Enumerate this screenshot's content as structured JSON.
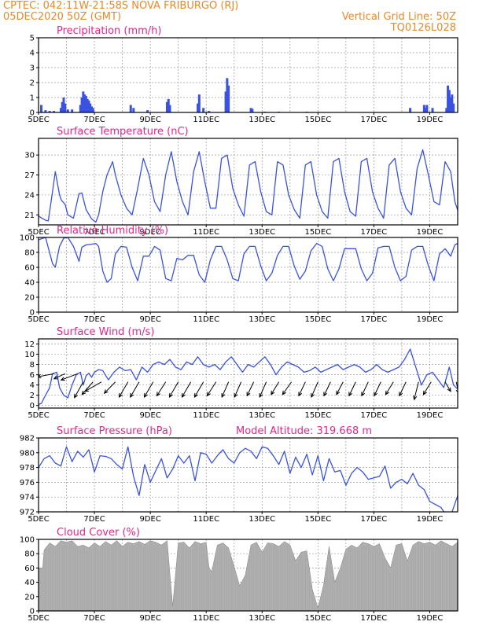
{
  "header": {
    "line1_left": "CPTEC:   042:11W-21:58S   NOVA FRIBURGO (RJ)",
    "line2_left": "05DEC2020 50Z (GMT)",
    "line2_right": "Vertical Grid Line: 50Z",
    "line3_right": "TQ0126L028"
  },
  "colors": {
    "series": "#3a52e0",
    "cloud": "#b0b0b0",
    "title": "#e0288c",
    "header": "#e8892a",
    "grid": "#9a9a9a"
  },
  "x_ticks": [
    "5DEC",
    "7DEC",
    "9DEC",
    "11DEC",
    "13DEC",
    "15DEC",
    "17DEC",
    "19DEC"
  ],
  "chart_data": [
    {
      "type": "bar",
      "title": "Precipitation (mm/h)",
      "ylim": [
        0,
        5
      ],
      "yticks": [
        "0",
        "1",
        "2",
        "3",
        "4",
        "5"
      ],
      "x_unit": "days since 05DEC",
      "bars": [
        [
          0.1,
          0.5
        ],
        [
          0.25,
          0.15
        ],
        [
          0.4,
          0.1
        ],
        [
          0.55,
          0.1
        ],
        [
          0.8,
          0.3
        ],
        [
          0.85,
          0.7
        ],
        [
          0.9,
          1.0
        ],
        [
          0.95,
          0.6
        ],
        [
          1.05,
          0.2
        ],
        [
          1.2,
          0.2
        ],
        [
          1.5,
          0.5
        ],
        [
          1.55,
          1.0
        ],
        [
          1.6,
          1.4
        ],
        [
          1.65,
          1.2
        ],
        [
          1.7,
          1.1
        ],
        [
          1.75,
          0.9
        ],
        [
          1.8,
          0.8
        ],
        [
          1.85,
          0.6
        ],
        [
          1.9,
          0.4
        ],
        [
          1.95,
          0.3
        ],
        [
          3.3,
          0.5
        ],
        [
          3.4,
          0.3
        ],
        [
          3.9,
          0.15
        ],
        [
          4.6,
          0.7
        ],
        [
          4.65,
          0.9
        ],
        [
          4.7,
          0.5
        ],
        [
          5.7,
          0.6
        ],
        [
          5.75,
          1.2
        ],
        [
          5.9,
          0.3
        ],
        [
          6.1,
          0.1
        ],
        [
          6.7,
          1.4
        ],
        [
          6.75,
          2.3
        ],
        [
          6.8,
          1.8
        ],
        [
          7.6,
          0.3
        ],
        [
          7.65,
          0.25
        ],
        [
          8.1,
          0.05
        ],
        [
          8.6,
          0.05
        ],
        [
          9.6,
          0.05
        ],
        [
          13.3,
          0.3
        ],
        [
          13.8,
          0.5
        ],
        [
          13.85,
          0.3
        ],
        [
          13.9,
          0.5
        ],
        [
          14.1,
          0.3
        ],
        [
          14.6,
          0.3
        ],
        [
          14.65,
          1.8
        ],
        [
          14.7,
          1.5
        ],
        [
          14.75,
          1.0
        ],
        [
          14.8,
          1.2
        ],
        [
          14.85,
          0.6
        ]
      ]
    },
    {
      "type": "line",
      "title": "Surface Temperature (nC)",
      "ylim": [
        19.5,
        32.5
      ],
      "yticks": [
        "21",
        "24",
        "27",
        "30"
      ],
      "x": [
        0,
        0.25,
        0.35,
        0.5,
        0.6,
        0.75,
        0.82,
        0.95,
        1.05,
        1.25,
        1.45,
        1.55,
        1.7,
        1.9,
        2.05,
        2.15,
        2.3,
        2.45,
        2.65,
        2.75,
        2.95,
        3.15,
        3.35,
        3.55,
        3.75,
        3.95,
        4.15,
        4.35,
        4.55,
        4.75,
        4.95,
        5.15,
        5.35,
        5.55,
        5.75,
        5.95,
        6.15,
        6.35,
        6.55,
        6.75,
        6.95,
        7.15,
        7.35,
        7.55,
        7.75,
        7.95,
        8.15,
        8.35,
        8.55,
        8.75,
        8.95,
        9.15,
        9.35,
        9.55,
        9.75,
        9.95,
        10.15,
        10.35,
        10.55,
        10.75,
        10.95,
        11.15,
        11.35,
        11.55,
        11.75,
        11.95,
        12.15,
        12.35,
        12.55,
        12.75,
        12.95,
        13.15,
        13.35,
        13.55,
        13.75,
        13.95,
        14.15,
        14.35,
        14.55,
        14.75,
        14.9,
        15
      ],
      "y": [
        20.8,
        20.2,
        20.1,
        24.5,
        27.5,
        24.0,
        23.2,
        22.6,
        21.0,
        20.5,
        24.2,
        24.3,
        21.8,
        20.4,
        19.9,
        21.0,
        24.5,
        27.0,
        29.0,
        27.0,
        24.0,
        22.0,
        21.0,
        25.0,
        29.5,
        27.0,
        23.0,
        21.5,
        27.0,
        30.5,
        26.0,
        23.0,
        21.0,
        27.5,
        30.5,
        26.0,
        22.0,
        22.0,
        29.5,
        30.0,
        25.0,
        22.5,
        20.8,
        28.5,
        29.0,
        24.5,
        21.5,
        21.0,
        29.0,
        28.5,
        24.0,
        21.8,
        20.5,
        28.5,
        29.0,
        24.0,
        21.5,
        20.5,
        29.0,
        29.5,
        24.5,
        21.5,
        20.8,
        29.0,
        29.5,
        24.5,
        22.0,
        20.5,
        28.5,
        29.5,
        24.5,
        22.0,
        21.0,
        28.0,
        30.8,
        27.0,
        23.0,
        22.5,
        29.0,
        27.5,
        23.0,
        21.7
      ]
    },
    {
      "type": "line",
      "title": "Relative Humidity (%)",
      "ylim": [
        0,
        100
      ],
      "yticks": [
        "0",
        "20",
        "40",
        "60",
        "80",
        "100"
      ],
      "x": [
        0,
        0.25,
        0.5,
        0.6,
        0.75,
        0.9,
        1.05,
        1.25,
        1.45,
        1.55,
        1.7,
        1.9,
        2.05,
        2.15,
        2.3,
        2.45,
        2.6,
        2.75,
        2.95,
        3.15,
        3.35,
        3.55,
        3.75,
        3.95,
        4.15,
        4.35,
        4.55,
        4.75,
        4.95,
        5.15,
        5.35,
        5.55,
        5.75,
        5.95,
        6.15,
        6.35,
        6.55,
        6.75,
        6.95,
        7.15,
        7.35,
        7.55,
        7.75,
        7.95,
        8.15,
        8.35,
        8.55,
        8.75,
        8.95,
        9.15,
        9.35,
        9.55,
        9.75,
        9.95,
        10.15,
        10.35,
        10.55,
        10.75,
        10.95,
        11.15,
        11.35,
        11.55,
        11.75,
        11.95,
        12.15,
        12.35,
        12.55,
        12.75,
        12.95,
        13.15,
        13.35,
        13.55,
        13.75,
        13.95,
        14.15,
        14.35,
        14.55,
        14.75,
        14.9,
        15
      ],
      "y": [
        97,
        100,
        65,
        60,
        88,
        99,
        100,
        88,
        68,
        87,
        90,
        91,
        92,
        88,
        55,
        40,
        45,
        78,
        88,
        87,
        60,
        42,
        75,
        75,
        88,
        83,
        45,
        42,
        72,
        70,
        76,
        76,
        50,
        40,
        70,
        88,
        88,
        70,
        45,
        42,
        78,
        88,
        88,
        62,
        42,
        52,
        76,
        88,
        88,
        62,
        44,
        55,
        82,
        92,
        88,
        58,
        42,
        58,
        85,
        85,
        85,
        58,
        42,
        52,
        86,
        88,
        88,
        60,
        42,
        48,
        83,
        88,
        88,
        62,
        42,
        78,
        85,
        75,
        90,
        92
      ]
    },
    {
      "type": "line",
      "title": "Surface Wind (m/s)",
      "ylim": [
        -0.5,
        13
      ],
      "yticks": [
        "0",
        "2",
        "4",
        "6",
        "8",
        "10",
        "12"
      ],
      "x": [
        0,
        0.1,
        0.2,
        0.3,
        0.4,
        0.5,
        0.65,
        0.75,
        0.9,
        1.05,
        1.2,
        1.35,
        1.5,
        1.6,
        1.7,
        1.8,
        1.9,
        2.0,
        2.15,
        2.3,
        2.5,
        2.7,
        2.9,
        3.1,
        3.3,
        3.5,
        3.7,
        3.9,
        4.1,
        4.3,
        4.5,
        4.7,
        4.9,
        5.1,
        5.3,
        5.5,
        5.7,
        5.9,
        6.1,
        6.3,
        6.5,
        6.7,
        6.9,
        7.1,
        7.3,
        7.5,
        7.7,
        7.9,
        8.1,
        8.3,
        8.5,
        8.7,
        8.9,
        9.1,
        9.3,
        9.5,
        9.7,
        9.9,
        10.1,
        10.3,
        10.5,
        10.7,
        10.9,
        11.1,
        11.3,
        11.5,
        11.7,
        11.9,
        12.1,
        12.3,
        12.5,
        12.7,
        12.9,
        13.1,
        13.3,
        13.5,
        13.7,
        13.9,
        14.1,
        14.3,
        14.5,
        14.7,
        14.85,
        15
      ],
      "y": [
        0.2,
        0.4,
        1.5,
        2.5,
        3.5,
        6.2,
        6.5,
        3.5,
        2.0,
        1.5,
        4.0,
        6.0,
        6.5,
        4.0,
        5.8,
        6.3,
        5.5,
        6.5,
        7.0,
        6.8,
        5.0,
        6.5,
        7.5,
        6.8,
        7.0,
        5.0,
        7.5,
        6.5,
        8.0,
        8.5,
        8.0,
        9.0,
        7.5,
        7.0,
        8.5,
        8.0,
        9.5,
        8.0,
        7.5,
        8.0,
        7.0,
        8.5,
        9.5,
        8.0,
        6.5,
        8.0,
        7.5,
        8.5,
        9.5,
        8.0,
        6.0,
        7.5,
        8.5,
        8.0,
        7.5,
        6.5,
        6.8,
        7.5,
        6.5,
        7.0,
        7.5,
        8.0,
        7.0,
        7.5,
        8.0,
        7.5,
        6.5,
        7.0,
        8.0,
        7.0,
        6.5,
        7.0,
        7.5,
        9.0,
        11.0,
        7.5,
        4.0,
        6.0,
        6.5,
        5.0,
        3.5,
        7.5,
        4.0,
        3.2
      ],
      "vectors": [
        [
          0.55,
          0,
          -1.5,
          0.5
        ],
        [
          0.95,
          0,
          -1.0,
          0.8
        ],
        [
          1.4,
          0,
          -1.5,
          1.0
        ],
        [
          1.6,
          -3,
          -0.8,
          2.5
        ],
        [
          1.95,
          -3,
          -1.0,
          2.0
        ],
        [
          2.25,
          -3,
          -1.5,
          1.5
        ],
        [
          2.75,
          -3,
          -1.0,
          1.8
        ],
        [
          3.2,
          -3,
          -0.8,
          2.4
        ],
        [
          3.6,
          -3,
          -0.8,
          2.4
        ],
        [
          4.1,
          -3,
          -0.8,
          2.4
        ],
        [
          4.55,
          -3,
          -0.8,
          2.2
        ],
        [
          5.0,
          -3,
          -0.8,
          2.4
        ],
        [
          5.45,
          -3,
          -0.8,
          2.4
        ],
        [
          5.9,
          -3,
          -0.8,
          2.4
        ],
        [
          6.35,
          -3,
          -0.8,
          2.2
        ],
        [
          6.8,
          -3,
          -0.6,
          2.4
        ],
        [
          7.25,
          -3,
          -0.6,
          2.4
        ],
        [
          7.7,
          -3,
          -0.6,
          2.2
        ],
        [
          8.15,
          -3,
          -0.6,
          2.4
        ],
        [
          8.6,
          -3,
          -0.7,
          2.0
        ],
        [
          9.05,
          -3,
          -0.8,
          2.0
        ],
        [
          9.55,
          -3,
          -0.6,
          2.2
        ],
        [
          10.0,
          -3,
          -0.6,
          2.4
        ],
        [
          10.45,
          -3,
          -0.6,
          2.2
        ],
        [
          10.9,
          -3,
          -0.6,
          2.0
        ],
        [
          11.35,
          -3,
          -0.6,
          2.2
        ],
        [
          11.8,
          -3,
          -0.6,
          2.2
        ],
        [
          12.25,
          -3,
          -0.6,
          2.2
        ],
        [
          12.7,
          -3,
          -0.7,
          2.0
        ],
        [
          13.15,
          -3,
          -0.6,
          2.2
        ],
        [
          13.6,
          -3,
          -0.4,
          2.8
        ],
        [
          14.05,
          -3,
          -0.7,
          2.0
        ],
        [
          14.55,
          -3,
          0.5,
          1.5
        ],
        [
          14.95,
          -3,
          0.2,
          1.8
        ]
      ]
    },
    {
      "type": "line",
      "title": "Surface Pressure (hPa)",
      "annotation": "Model Altitude: 319.668 m",
      "ylim": [
        972,
        982
      ],
      "yticks": [
        "972",
        "974",
        "976",
        "978",
        "980",
        "982"
      ],
      "x": [
        0,
        0.2,
        0.4,
        0.6,
        0.8,
        1.0,
        1.2,
        1.4,
        1.6,
        1.8,
        2.0,
        2.2,
        2.4,
        2.6,
        2.8,
        3.0,
        3.2,
        3.4,
        3.6,
        3.8,
        4.0,
        4.2,
        4.4,
        4.6,
        4.8,
        5.0,
        5.2,
        5.4,
        5.6,
        5.8,
        6.0,
        6.2,
        6.4,
        6.6,
        6.8,
        7.0,
        7.2,
        7.4,
        7.6,
        7.8,
        8.0,
        8.2,
        8.4,
        8.6,
        8.8,
        9.0,
        9.2,
        9.4,
        9.6,
        9.8,
        10.0,
        10.2,
        10.4,
        10.6,
        10.8,
        11.0,
        11.2,
        11.4,
        11.6,
        11.8,
        12.0,
        12.2,
        12.4,
        12.6,
        12.8,
        13.0,
        13.2,
        13.4,
        13.6,
        13.8,
        14.0,
        14.2,
        14.4,
        14.6,
        14.8,
        15
      ],
      "y": [
        978,
        979.2,
        979.6,
        978.6,
        978.2,
        980.8,
        978.8,
        980.2,
        979.4,
        980.4,
        977.4,
        979.6,
        979.5,
        979.2,
        978.4,
        977.8,
        980.8,
        976.8,
        974.2,
        978.4,
        976,
        977.6,
        979.2,
        976.6,
        977.8,
        979.6,
        978.6,
        979.6,
        976.2,
        980,
        979.8,
        978.6,
        979.6,
        980.4,
        979.2,
        978.6,
        980,
        980.6,
        980.2,
        979.2,
        980.8,
        980.6,
        979.6,
        978.4,
        980.2,
        977.2,
        979.4,
        978,
        979.8,
        977,
        979.6,
        976.2,
        979.2,
        977.4,
        977.6,
        975.6,
        977.2,
        978,
        977.4,
        976.4,
        976.6,
        976.8,
        978.2,
        975.2,
        976,
        976.4,
        975.8,
        977.2,
        975.6,
        975,
        973.4,
        973,
        972.6,
        971.5,
        972,
        974.2
      ]
    },
    {
      "type": "area",
      "title": "Cloud Cover (%)",
      "ylim": [
        0,
        100
      ],
      "yticks": [
        "0",
        "20",
        "40",
        "60",
        "80",
        "100"
      ],
      "x": [
        0,
        0.15,
        0.2,
        0.4,
        0.6,
        0.8,
        1.0,
        1.2,
        1.4,
        1.6,
        1.8,
        2.0,
        2.2,
        2.4,
        2.6,
        2.8,
        3.0,
        3.2,
        3.4,
        3.6,
        3.8,
        4.0,
        4.2,
        4.4,
        4.6,
        4.8,
        5.0,
        5.2,
        5.4,
        5.6,
        5.8,
        6.0,
        6.1,
        6.2,
        6.4,
        6.6,
        6.8,
        7.0,
        7.2,
        7.4,
        7.6,
        7.8,
        8.0,
        8.2,
        8.4,
        8.6,
        8.8,
        9.0,
        9.2,
        9.4,
        9.6,
        9.8,
        10.0,
        10.2,
        10.4,
        10.6,
        10.8,
        11.0,
        11.2,
        11.4,
        11.6,
        11.8,
        12.0,
        12.2,
        12.4,
        12.6,
        12.8,
        13.0,
        13.2,
        13.4,
        13.6,
        13.8,
        14.0,
        14.2,
        14.4,
        14.6,
        14.8,
        15
      ],
      "y": [
        60,
        60,
        85,
        95,
        90,
        98,
        96,
        98,
        90,
        92,
        88,
        95,
        90,
        97,
        92,
        98,
        90,
        96,
        94,
        97,
        93,
        98,
        96,
        92,
        98,
        6,
        95,
        96,
        88,
        97,
        94,
        96,
        60,
        55,
        92,
        95,
        88,
        62,
        35,
        50,
        92,
        96,
        82,
        95,
        94,
        90,
        97,
        92,
        70,
        82,
        84,
        30,
        4,
        36,
        90,
        40,
        60,
        86,
        92,
        88,
        96,
        94,
        90,
        94,
        74,
        60,
        92,
        94,
        70,
        92,
        97,
        94,
        96,
        92,
        98,
        94,
        90,
        96
      ]
    }
  ]
}
